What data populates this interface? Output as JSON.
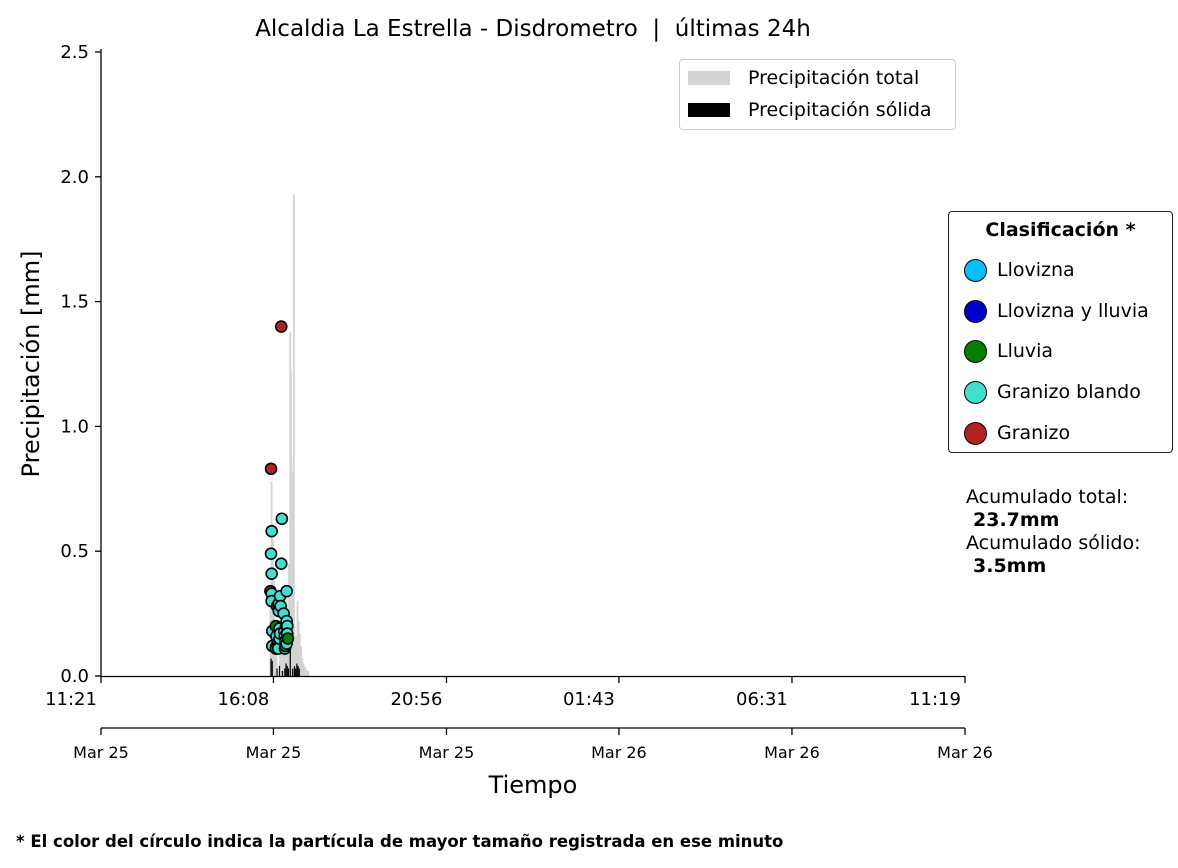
{
  "title": "Alcaldia La Estrella - Disdrometro  |  últimas 24h",
  "footnote": "* El color del círculo indica la partícula de mayor tamaño registrada en ese minuto",
  "legend_top": [
    {
      "label": "Precipitación total",
      "color": "#d3d3d3"
    },
    {
      "label": "Precipitación sólida",
      "color": "#000000"
    }
  ],
  "legend_class": {
    "title": "Clasificación *",
    "items": [
      {
        "label": "Llovizna",
        "color": "#00bfff"
      },
      {
        "label": "Llovizna y lluvia",
        "color": "#0000cd"
      },
      {
        "label": "Lluvia",
        "color": "#008000"
      },
      {
        "label": "Granizo blando",
        "color": "#40e0d0"
      },
      {
        "label": "Granizo",
        "color": "#b22222"
      }
    ]
  },
  "accum": {
    "total_label": "Acumulado total:",
    "total_value": "23.7mm",
    "solid_label": "Acumulado sólido:",
    "solid_value": "3.5mm"
  },
  "chart_data": {
    "type": "bar",
    "title": "Alcaldia La Estrella - Disdrometro  |  últimas 24h",
    "xlabel": "Tiempo",
    "ylabel": "Precipitación [mm]",
    "ylim": [
      0,
      2.5
    ],
    "xlim": [
      "2025-03-25 11:21",
      "2025-03-26 11:19"
    ],
    "y_ticks": [
      "0.0",
      "0.5",
      "1.0",
      "1.5",
      "2.0",
      "2.5"
    ],
    "x_ticks": [
      {
        "x": "2025-03-25 11:21",
        "time": "11:21",
        "date": "Mar 25"
      },
      {
        "x": "2025-03-25 16:08",
        "time": "16:08",
        "date": "Mar 25"
      },
      {
        "x": "2025-03-25 20:56",
        "time": "20:56",
        "date": "Mar 25"
      },
      {
        "x": "2025-03-26 01:43",
        "time": "01:43",
        "date": "Mar 26"
      },
      {
        "x": "2025-03-26 06:31",
        "time": "06:31",
        "date": "Mar 26"
      },
      {
        "x": "2025-03-26 11:19",
        "time": "11:19",
        "date": "Mar 26"
      }
    ],
    "total_precip": [
      {
        "x": "2025-03-25 16:03",
        "y": 0.33
      },
      {
        "x": "2025-03-25 16:05",
        "y": 0.78
      },
      {
        "x": "2025-03-25 16:07",
        "y": 0.55
      },
      {
        "x": "2025-03-25 16:09",
        "y": 0.38
      },
      {
        "x": "2025-03-25 16:11",
        "y": 0.2
      },
      {
        "x": "2025-03-25 16:13",
        "y": 0.12
      },
      {
        "x": "2025-03-25 16:19",
        "y": 0.22
      },
      {
        "x": "2025-03-25 16:21",
        "y": 0.16
      },
      {
        "x": "2025-03-25 16:24",
        "y": 0.3
      },
      {
        "x": "2025-03-25 16:26",
        "y": 0.27
      },
      {
        "x": "2025-03-25 16:28",
        "y": 0.2
      },
      {
        "x": "2025-03-25 16:30",
        "y": 0.32
      },
      {
        "x": "2025-03-25 16:32",
        "y": 0.24
      },
      {
        "x": "2025-03-25 16:34",
        "y": 0.45
      },
      {
        "x": "2025-03-25 16:36",
        "y": 1.38
      },
      {
        "x": "2025-03-25 16:37",
        "y": 1.22
      },
      {
        "x": "2025-03-25 16:38",
        "y": 0.88
      },
      {
        "x": "2025-03-25 16:39",
        "y": 0.6
      },
      {
        "x": "2025-03-25 16:40",
        "y": 0.82
      },
      {
        "x": "2025-03-25 16:41",
        "y": 0.6
      },
      {
        "x": "2025-03-25 16:42",
        "y": 1.93
      },
      {
        "x": "2025-03-25 16:43",
        "y": 0.2
      },
      {
        "x": "2025-03-25 16:44",
        "y": 0.12
      },
      {
        "x": "2025-03-25 16:46",
        "y": 0.16
      },
      {
        "x": "2025-03-25 16:48",
        "y": 0.3
      },
      {
        "x": "2025-03-25 16:50",
        "y": 0.22
      },
      {
        "x": "2025-03-25 16:52",
        "y": 0.17
      },
      {
        "x": "2025-03-25 16:54",
        "y": 0.12
      },
      {
        "x": "2025-03-25 16:56",
        "y": 0.07
      },
      {
        "x": "2025-03-25 16:58",
        "y": 0.05
      },
      {
        "x": "2025-03-25 17:00",
        "y": 0.04
      },
      {
        "x": "2025-03-25 17:02",
        "y": 0.03
      },
      {
        "x": "2025-03-25 17:04",
        "y": 0.02
      },
      {
        "x": "2025-03-25 17:06",
        "y": 0.02
      }
    ],
    "solid_precip": [
      {
        "x": "2025-03-25 16:04",
        "y": 0.07
      },
      {
        "x": "2025-03-25 16:06",
        "y": 0.06
      },
      {
        "x": "2025-03-25 16:14",
        "y": 0.03
      },
      {
        "x": "2025-03-25 16:18",
        "y": 0.04
      },
      {
        "x": "2025-03-25 16:23",
        "y": 0.02
      },
      {
        "x": "2025-03-25 16:27",
        "y": 0.03
      },
      {
        "x": "2025-03-25 16:29",
        "y": 0.05
      },
      {
        "x": "2025-03-25 16:31",
        "y": 0.04
      },
      {
        "x": "2025-03-25 16:33",
        "y": 0.03
      },
      {
        "x": "2025-03-25 16:36",
        "y": 0.15
      },
      {
        "x": "2025-03-25 16:40",
        "y": 0.03
      },
      {
        "x": "2025-03-25 16:43",
        "y": 0.04
      },
      {
        "x": "2025-03-25 16:45",
        "y": 0.03
      },
      {
        "x": "2025-03-25 16:47",
        "y": 0.05
      },
      {
        "x": "2025-03-25 16:49",
        "y": 0.04
      },
      {
        "x": "2025-03-25 16:51",
        "y": 0.03
      }
    ],
    "classification_points": [
      {
        "x": "2025-03-25 16:04",
        "y": 0.83,
        "class": "Granizo"
      },
      {
        "x": "2025-03-25 16:03",
        "y": 0.34,
        "class": "Granizo"
      },
      {
        "x": "2025-03-25 16:05",
        "y": 0.58,
        "class": "Granizo blando"
      },
      {
        "x": "2025-03-25 16:04",
        "y": 0.49,
        "class": "Granizo blando"
      },
      {
        "x": "2025-03-25 16:05",
        "y": 0.41,
        "class": "Granizo blando"
      },
      {
        "x": "2025-03-25 16:05",
        "y": 0.33,
        "class": "Granizo blando"
      },
      {
        "x": "2025-03-25 16:05",
        "y": 0.3,
        "class": "Granizo blando"
      },
      {
        "x": "2025-03-25 16:06",
        "y": 0.18,
        "class": "Granizo blando"
      },
      {
        "x": "2025-03-25 16:06",
        "y": 0.12,
        "class": "Granizo blando"
      },
      {
        "x": "2025-03-25 16:12",
        "y": 0.2,
        "class": "Lluvia"
      },
      {
        "x": "2025-03-25 16:13",
        "y": 0.16,
        "class": "Granizo blando"
      },
      {
        "x": "2025-03-25 16:13",
        "y": 0.12,
        "class": "Granizo blando"
      },
      {
        "x": "2025-03-25 16:12",
        "y": 0.11,
        "class": "Lluvia"
      },
      {
        "x": "2025-03-25 16:14",
        "y": 0.28,
        "class": "Granizo"
      },
      {
        "x": "2025-03-25 16:16",
        "y": 0.11,
        "class": "Granizo blando"
      },
      {
        "x": "2025-03-25 16:17",
        "y": 0.29,
        "class": "Granizo blando"
      },
      {
        "x": "2025-03-25 16:17",
        "y": 0.26,
        "class": "Granizo blando"
      },
      {
        "x": "2025-03-25 16:18",
        "y": 0.19,
        "class": "Granizo blando"
      },
      {
        "x": "2025-03-25 16:18",
        "y": 0.15,
        "class": "Granizo blando"
      },
      {
        "x": "2025-03-25 16:19",
        "y": 0.32,
        "class": "Granizo blando"
      },
      {
        "x": "2025-03-25 16:19",
        "y": 0.17,
        "class": "Granizo blando"
      },
      {
        "x": "2025-03-25 16:20",
        "y": 0.28,
        "class": "Granizo blando"
      },
      {
        "x": "2025-03-25 16:21",
        "y": 1.4,
        "class": "Granizo"
      },
      {
        "x": "2025-03-25 16:22",
        "y": 0.63,
        "class": "Granizo blando"
      },
      {
        "x": "2025-03-25 16:21",
        "y": 0.45,
        "class": "Granizo blando"
      },
      {
        "x": "2025-03-25 16:25",
        "y": 0.25,
        "class": "Granizo blando"
      },
      {
        "x": "2025-03-25 16:26",
        "y": 0.18,
        "class": "Granizo blando"
      },
      {
        "x": "2025-03-25 16:27",
        "y": 0.16,
        "class": "Granizo blando"
      },
      {
        "x": "2025-03-25 16:27",
        "y": 0.11,
        "class": "Granizo blando"
      },
      {
        "x": "2025-03-25 16:28",
        "y": 0.14,
        "class": "Granizo blando"
      },
      {
        "x": "2025-03-25 16:28",
        "y": 0.12,
        "class": "Lluvia"
      },
      {
        "x": "2025-03-25 16:29",
        "y": 0.2,
        "class": "Lluvia"
      },
      {
        "x": "2025-03-25 16:30",
        "y": 0.22,
        "class": "Granizo blando"
      },
      {
        "x": "2025-03-25 16:30",
        "y": 0.13,
        "class": "Granizo blando"
      },
      {
        "x": "2025-03-25 16:30",
        "y": 0.34,
        "class": "Granizo blando"
      },
      {
        "x": "2025-03-25 16:31",
        "y": 0.2,
        "class": "Granizo blando"
      },
      {
        "x": "2025-03-25 16:31",
        "y": 0.17,
        "class": "Granizo blando"
      },
      {
        "x": "2025-03-25 16:32",
        "y": 0.15,
        "class": "Lluvia"
      }
    ]
  }
}
